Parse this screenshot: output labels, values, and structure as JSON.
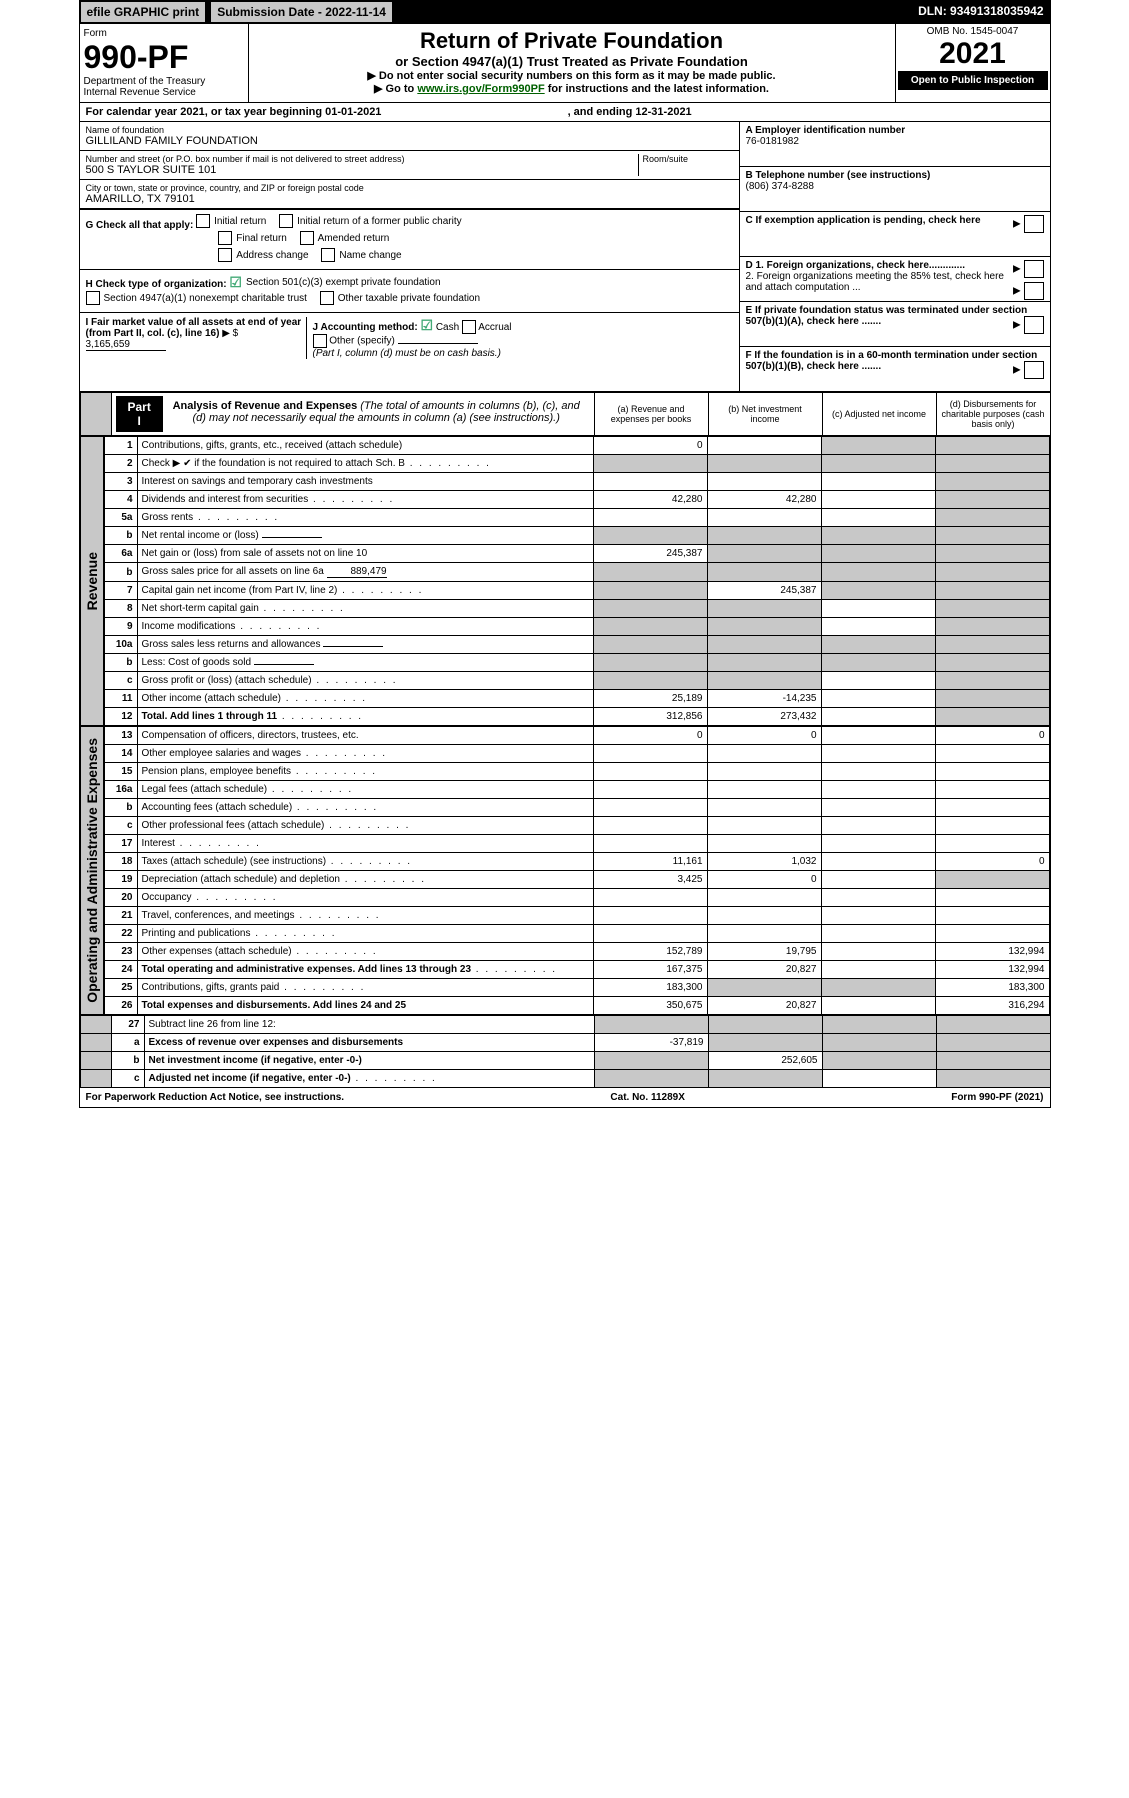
{
  "topbar": {
    "efile": "efile GRAPHIC print",
    "submission": "Submission Date - 2022-11-14",
    "dln": "DLN: 93491318035942"
  },
  "header": {
    "form_label": "Form",
    "form_number": "990-PF",
    "dept": "Department of the Treasury",
    "irs": "Internal Revenue Service",
    "title": "Return of Private Foundation",
    "subtitle": "or Section 4947(a)(1) Trust Treated as Private Foundation",
    "note1": "Do not enter social security numbers on this form as it may be made public.",
    "note2_pre": "Go to ",
    "note2_link": "www.irs.gov/Form990PF",
    "note2_post": " for instructions and the latest information.",
    "omb": "OMB No. 1545-0047",
    "year": "2021",
    "otpi": "Open to Public Inspection"
  },
  "period": {
    "line_pre": "For calendar year 2021, or tax year beginning ",
    "begin": "01-01-2021",
    "mid": " , and ending ",
    "end": "12-31-2021"
  },
  "foundation": {
    "name_label": "Name of foundation",
    "name": "GILLILAND FAMILY FOUNDATION",
    "addr_label": "Number and street (or P.O. box number if mail is not delivered to street address)",
    "addr": "500 S TAYLOR SUITE 101",
    "room_label": "Room/suite",
    "city_label": "City or town, state or province, country, and ZIP or foreign postal code",
    "city": "AMARILLO, TX  79101"
  },
  "right_meta": {
    "a_label": "A Employer identification number",
    "a_val": "76-0181982",
    "b_label": "B Telephone number (see instructions)",
    "b_val": "(806) 374-8288",
    "c_label": "C If exemption application is pending, check here",
    "d1": "D 1. Foreign organizations, check here.............",
    "d2": "2. Foreign organizations meeting the 85% test, check here and attach computation ...",
    "e": "E  If private foundation status was terminated under section 507(b)(1)(A), check here .......",
    "f": "F  If the foundation is in a 60-month termination under section 507(b)(1)(B), check here .......",
    "j_label": "J Accounting method:",
    "j_cash": "Cash",
    "j_accrual": "Accrual",
    "j_other": "Other (specify)",
    "j_note": "(Part I, column (d) must be on cash basis.)"
  },
  "g": {
    "label": "G Check all that apply:",
    "opts": [
      "Initial return",
      "Initial return of a former public charity",
      "Final return",
      "Amended return",
      "Address change",
      "Name change"
    ]
  },
  "h": {
    "label": "H Check type of organization:",
    "opt1": "Section 501(c)(3) exempt private foundation",
    "opt2": "Section 4947(a)(1) nonexempt charitable trust",
    "opt3": "Other taxable private foundation"
  },
  "i": {
    "label": "I Fair market value of all assets at end of year (from Part II, col. (c), line 16)",
    "val": "3,165,659"
  },
  "part1": {
    "tab": "Part I",
    "title": "Analysis of Revenue and Expenses",
    "title_note": " (The total of amounts in columns (b), (c), and (d) may not necessarily equal the amounts in column (a) (see instructions).)",
    "col_a": "(a)  Revenue and expenses per books",
    "col_b": "(b)  Net investment income",
    "col_c": "(c)  Adjusted net income",
    "col_d": "(d)  Disbursements for charitable purposes (cash basis only)"
  },
  "side_rev": "Revenue",
  "side_exp": "Operating and Administrative Expenses",
  "rows": [
    {
      "n": "1",
      "desc": "Contributions, gifts, grants, etc., received (attach schedule)",
      "a": "0",
      "b": "",
      "c": "grey",
      "d": "grey"
    },
    {
      "n": "2",
      "desc": "Check ▶ ✔ if the foundation is not required to attach Sch. B",
      "a": "grey",
      "b": "grey",
      "c": "grey",
      "d": "grey",
      "dots": true
    },
    {
      "n": "3",
      "desc": "Interest on savings and temporary cash investments",
      "a": "",
      "b": "",
      "c": "",
      "d": "grey"
    },
    {
      "n": "4",
      "desc": "Dividends and interest from securities",
      "a": "42,280",
      "b": "42,280",
      "c": "",
      "d": "grey",
      "dots": true
    },
    {
      "n": "5a",
      "desc": "Gross rents",
      "a": "",
      "b": "",
      "c": "",
      "d": "grey",
      "dots": true
    },
    {
      "n": "b",
      "desc": "Net rental income or (loss)",
      "a": "grey",
      "b": "grey",
      "c": "grey",
      "d": "grey",
      "inline": true
    },
    {
      "n": "6a",
      "desc": "Net gain or (loss) from sale of assets not on line 10",
      "a": "245,387",
      "b": "grey",
      "c": "grey",
      "d": "grey"
    },
    {
      "n": "b",
      "desc": "Gross sales price for all assets on line 6a",
      "a": "grey",
      "b": "grey",
      "c": "grey",
      "d": "grey",
      "inline": true,
      "inline_val": "889,479"
    },
    {
      "n": "7",
      "desc": "Capital gain net income (from Part IV, line 2)",
      "a": "grey",
      "b": "245,387",
      "c": "grey",
      "d": "grey",
      "dots": true
    },
    {
      "n": "8",
      "desc": "Net short-term capital gain",
      "a": "grey",
      "b": "grey",
      "c": "",
      "d": "grey",
      "dots": true
    },
    {
      "n": "9",
      "desc": "Income modifications",
      "a": "grey",
      "b": "grey",
      "c": "",
      "d": "grey",
      "dots": true
    },
    {
      "n": "10a",
      "desc": "Gross sales less returns and allowances",
      "a": "grey",
      "b": "grey",
      "c": "grey",
      "d": "grey",
      "inline": true
    },
    {
      "n": "b",
      "desc": "Less: Cost of goods sold",
      "a": "grey",
      "b": "grey",
      "c": "grey",
      "d": "grey",
      "dots": true,
      "inline": true
    },
    {
      "n": "c",
      "desc": "Gross profit or (loss) (attach schedule)",
      "a": "grey",
      "b": "grey",
      "c": "",
      "d": "grey",
      "dots": true
    },
    {
      "n": "11",
      "desc": "Other income (attach schedule)",
      "a": "25,189",
      "b": "-14,235",
      "c": "",
      "d": "grey",
      "dots": true
    },
    {
      "n": "12",
      "desc": "Total. Add lines 1 through 11",
      "a": "312,856",
      "b": "273,432",
      "c": "",
      "d": "grey",
      "dots": true,
      "bold": true
    }
  ],
  "exp_rows": [
    {
      "n": "13",
      "desc": "Compensation of officers, directors, trustees, etc.",
      "a": "0",
      "b": "0",
      "c": "",
      "d": "0"
    },
    {
      "n": "14",
      "desc": "Other employee salaries and wages",
      "a": "",
      "b": "",
      "c": "",
      "d": "",
      "dots": true
    },
    {
      "n": "15",
      "desc": "Pension plans, employee benefits",
      "a": "",
      "b": "",
      "c": "",
      "d": "",
      "dots": true
    },
    {
      "n": "16a",
      "desc": "Legal fees (attach schedule)",
      "a": "",
      "b": "",
      "c": "",
      "d": "",
      "dots": true
    },
    {
      "n": "b",
      "desc": "Accounting fees (attach schedule)",
      "a": "",
      "b": "",
      "c": "",
      "d": "",
      "dots": true
    },
    {
      "n": "c",
      "desc": "Other professional fees (attach schedule)",
      "a": "",
      "b": "",
      "c": "",
      "d": "",
      "dots": true
    },
    {
      "n": "17",
      "desc": "Interest",
      "a": "",
      "b": "",
      "c": "",
      "d": "",
      "dots": true
    },
    {
      "n": "18",
      "desc": "Taxes (attach schedule) (see instructions)",
      "a": "11,161",
      "b": "1,032",
      "c": "",
      "d": "0",
      "dots": true
    },
    {
      "n": "19",
      "desc": "Depreciation (attach schedule) and depletion",
      "a": "3,425",
      "b": "0",
      "c": "",
      "d": "grey",
      "dots": true
    },
    {
      "n": "20",
      "desc": "Occupancy",
      "a": "",
      "b": "",
      "c": "",
      "d": "",
      "dots": true
    },
    {
      "n": "21",
      "desc": "Travel, conferences, and meetings",
      "a": "",
      "b": "",
      "c": "",
      "d": "",
      "dots": true
    },
    {
      "n": "22",
      "desc": "Printing and publications",
      "a": "",
      "b": "",
      "c": "",
      "d": "",
      "dots": true
    },
    {
      "n": "23",
      "desc": "Other expenses (attach schedule)",
      "a": "152,789",
      "b": "19,795",
      "c": "",
      "d": "132,994",
      "dots": true
    },
    {
      "n": "24",
      "desc": "Total operating and administrative expenses. Add lines 13 through 23",
      "a": "167,375",
      "b": "20,827",
      "c": "",
      "d": "132,994",
      "dots": true,
      "bold": true
    },
    {
      "n": "25",
      "desc": "Contributions, gifts, grants paid",
      "a": "183,300",
      "b": "grey",
      "c": "grey",
      "d": "183,300",
      "dots": true
    },
    {
      "n": "26",
      "desc": "Total expenses and disbursements. Add lines 24 and 25",
      "a": "350,675",
      "b": "20,827",
      "c": "",
      "d": "316,294",
      "bold": true
    }
  ],
  "final_rows": [
    {
      "n": "27",
      "desc": "Subtract line 26 from line 12:",
      "a": "grey",
      "b": "grey",
      "c": "grey",
      "d": "grey"
    },
    {
      "n": "a",
      "desc": "Excess of revenue over expenses and disbursements",
      "a": "-37,819",
      "b": "grey",
      "c": "grey",
      "d": "grey",
      "bold": true
    },
    {
      "n": "b",
      "desc": "Net investment income (if negative, enter -0-)",
      "a": "grey",
      "b": "252,605",
      "c": "grey",
      "d": "grey",
      "bold": true
    },
    {
      "n": "c",
      "desc": "Adjusted net income (if negative, enter -0-)",
      "a": "grey",
      "b": "grey",
      "c": "",
      "d": "grey",
      "dots": true,
      "bold": true
    }
  ],
  "footer": {
    "left": "For Paperwork Reduction Act Notice, see instructions.",
    "mid": "Cat. No. 11289X",
    "right": "Form 990-PF (2021)"
  }
}
